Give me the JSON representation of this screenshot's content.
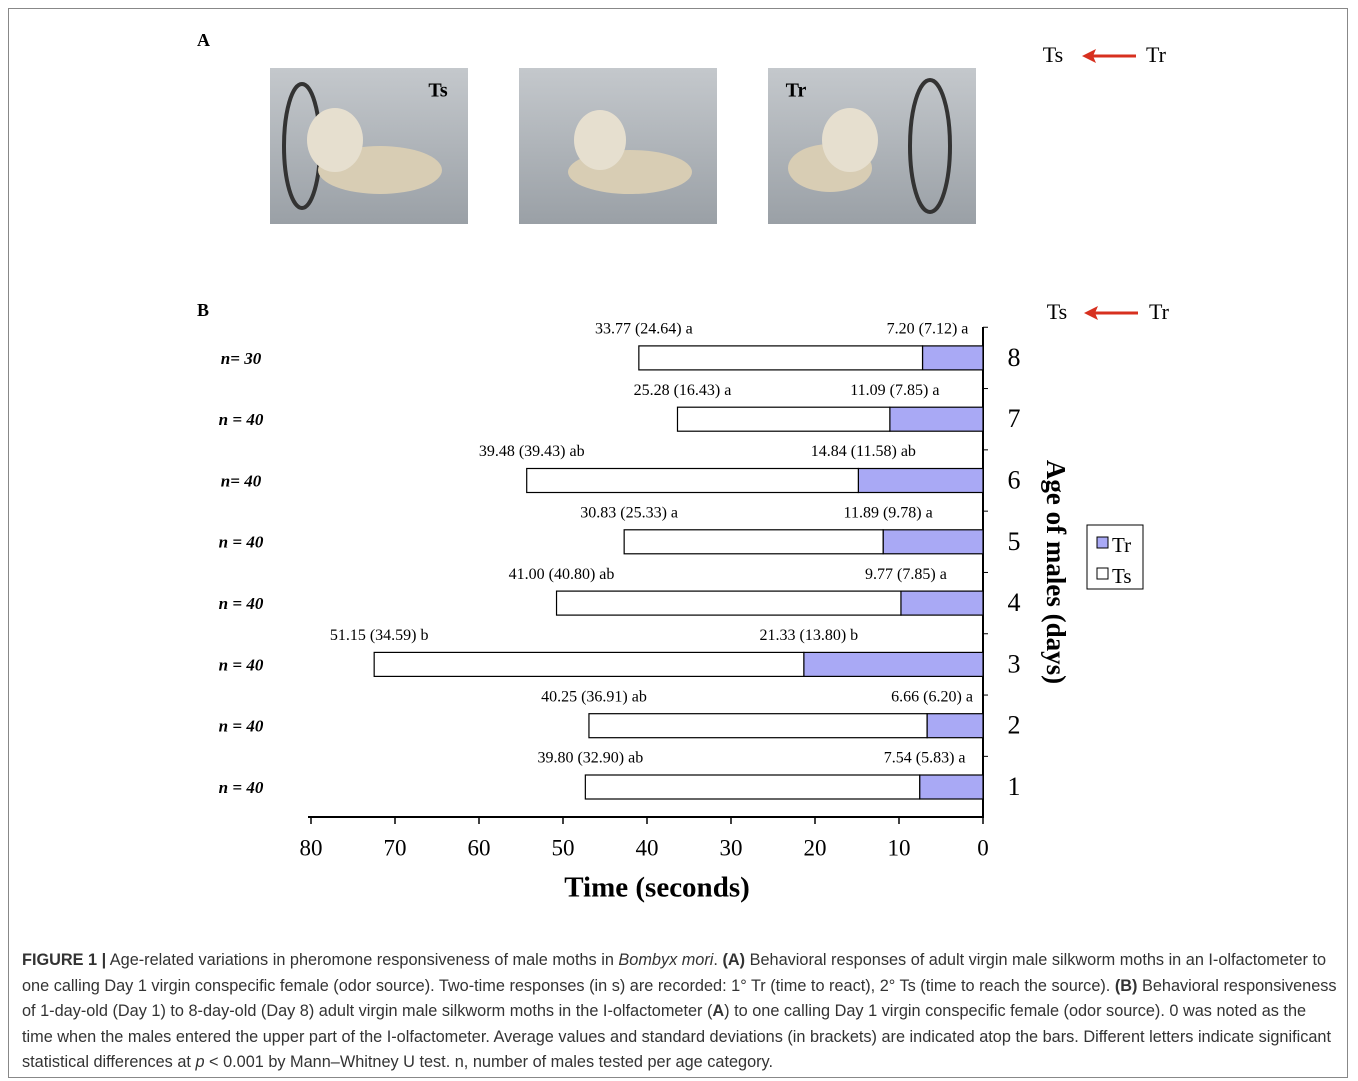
{
  "panel_a": {
    "label": "A",
    "photo_labels": [
      "Ts",
      "Tr"
    ],
    "arrow_to": "Ts",
    "arrow_from": "Tr"
  },
  "chart_data": {
    "type": "stacked-barh",
    "panel_label": "B",
    "arrow_to": "Ts",
    "arrow_from": "Tr",
    "categories": [
      "1",
      "2",
      "3",
      "4",
      "5",
      "6",
      "7",
      "8"
    ],
    "n_labels": [
      "n = 40",
      "n = 40",
      "n = 40",
      "n = 40",
      "n = 40",
      "n= 40",
      "n = 40",
      "n= 30"
    ],
    "series": [
      {
        "name": "Tr",
        "color": "#a9a9f5",
        "values": [
          7.54,
          6.66,
          21.33,
          9.77,
          11.89,
          14.84,
          11.09,
          7.2
        ],
        "value_labels": [
          "7.54 (5.83) a",
          "6.66 (6.20) a",
          "21.33 (13.80) b",
          "9.77 (7.85) a",
          "11.89 (9.78) a",
          "14.84 (11.58) ab",
          "11.09 (7.85) a",
          "7.20 (7.12) a"
        ]
      },
      {
        "name": "Ts",
        "color": "#ffffff",
        "values": [
          39.8,
          40.25,
          51.15,
          41.0,
          30.83,
          39.48,
          25.28,
          33.77
        ],
        "value_labels": [
          "39.80 (32.90) ab",
          "40.25 (36.91) ab",
          "51.15 (34.59) b",
          "41.00 (40.80) ab",
          "30.83 (25.33) a",
          "39.48 (39.43) ab",
          "25.28 (16.43) a",
          "33.77 (24.64) a"
        ]
      }
    ],
    "xlabel": "Time (seconds)",
    "ylabel": "Age of males (days)",
    "xlim": [
      80,
      0
    ],
    "xticks": [
      80,
      70,
      60,
      50,
      40,
      30,
      20,
      10,
      0
    ],
    "grid": false
  },
  "caption": [
    "FIGURE 1 |",
    " Age-related variations in pheromone responsiveness of male moths in ",
    "Bombyx mori",
    ". ",
    "(A)",
    " Behavioral responses of adult virgin male silkworm moths in an I-olfactometer to one calling Day 1 virgin conspecific female (odor source). Two-time responses (in s) are recorded: 1° Tr (time to react), 2° Ts (time to reach the source). ",
    "(B)",
    " Behavioral responsiveness of 1-day-old (Day 1) to 8-day-old (Day 8) adult virgin male silkworm moths in the I-olfactometer (",
    "A",
    ") to one calling Day 1 virgin conspecific female (odor source). 0 was noted as the time when the males entered the upper part of the I-olfactometer. Average values and standard deviations (in brackets) are indicated atop the bars. Different letters indicate significant statistical differences at ",
    "p",
    " < 0.001 by Mann–Whitney U test. n, number of males tested per age category."
  ]
}
